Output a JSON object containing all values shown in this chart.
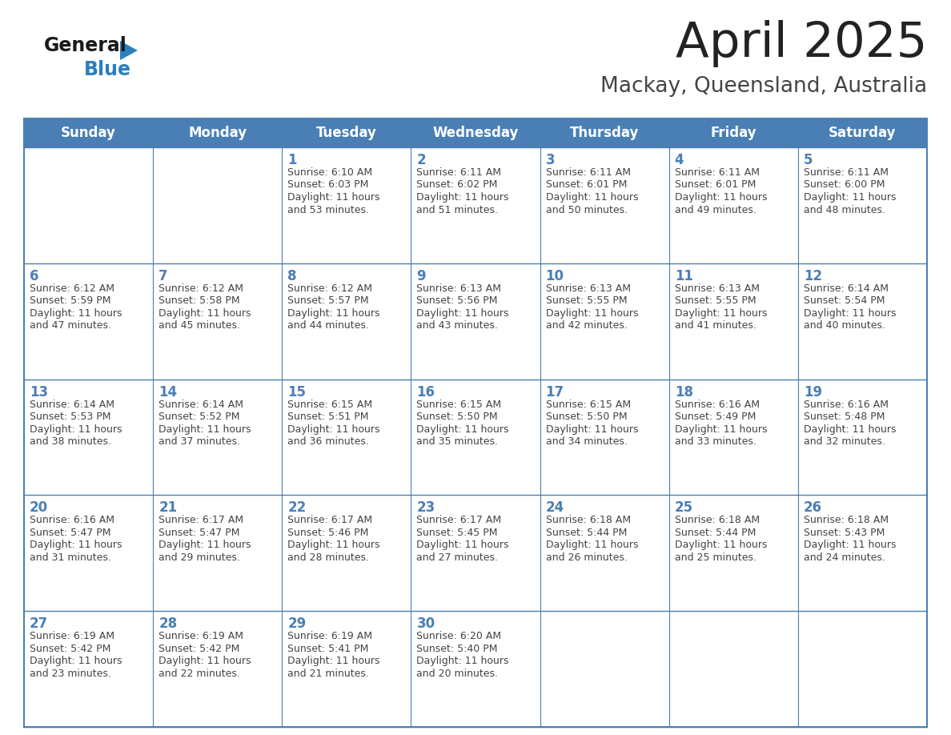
{
  "title": "April 2025",
  "subtitle": "Mackay, Queensland, Australia",
  "days_of_week": [
    "Sunday",
    "Monday",
    "Tuesday",
    "Wednesday",
    "Thursday",
    "Friday",
    "Saturday"
  ],
  "header_bg_color": "#4a7fb5",
  "header_text_color": "#ffffff",
  "cell_bg_color": "#ffffff",
  "cell_bg_alt": "#f2f6fb",
  "border_color": "#4a7fb5",
  "row_line_color": "#4a7fb5",
  "day_number_color": "#4a7fb5",
  "text_color": "#444444",
  "title_color": "#222222",
  "subtitle_color": "#444444",
  "logo_general_color": "#1a1a1a",
  "logo_blue_color": "#2a7fc0",
  "logo_triangle_color": "#2a7fc0",
  "weeks": [
    [
      {
        "date": "",
        "sunrise": "",
        "sunset": "",
        "daylight": ""
      },
      {
        "date": "",
        "sunrise": "",
        "sunset": "",
        "daylight": ""
      },
      {
        "date": "1",
        "sunrise": "6:10 AM",
        "sunset": "6:03 PM",
        "daylight": "11 hours and 53 minutes."
      },
      {
        "date": "2",
        "sunrise": "6:11 AM",
        "sunset": "6:02 PM",
        "daylight": "11 hours and 51 minutes."
      },
      {
        "date": "3",
        "sunrise": "6:11 AM",
        "sunset": "6:01 PM",
        "daylight": "11 hours and 50 minutes."
      },
      {
        "date": "4",
        "sunrise": "6:11 AM",
        "sunset": "6:01 PM",
        "daylight": "11 hours and 49 minutes."
      },
      {
        "date": "5",
        "sunrise": "6:11 AM",
        "sunset": "6:00 PM",
        "daylight": "11 hours and 48 minutes."
      }
    ],
    [
      {
        "date": "6",
        "sunrise": "6:12 AM",
        "sunset": "5:59 PM",
        "daylight": "11 hours and 47 minutes."
      },
      {
        "date": "7",
        "sunrise": "6:12 AM",
        "sunset": "5:58 PM",
        "daylight": "11 hours and 45 minutes."
      },
      {
        "date": "8",
        "sunrise": "6:12 AM",
        "sunset": "5:57 PM",
        "daylight": "11 hours and 44 minutes."
      },
      {
        "date": "9",
        "sunrise": "6:13 AM",
        "sunset": "5:56 PM",
        "daylight": "11 hours and 43 minutes."
      },
      {
        "date": "10",
        "sunrise": "6:13 AM",
        "sunset": "5:55 PM",
        "daylight": "11 hours and 42 minutes."
      },
      {
        "date": "11",
        "sunrise": "6:13 AM",
        "sunset": "5:55 PM",
        "daylight": "11 hours and 41 minutes."
      },
      {
        "date": "12",
        "sunrise": "6:14 AM",
        "sunset": "5:54 PM",
        "daylight": "11 hours and 40 minutes."
      }
    ],
    [
      {
        "date": "13",
        "sunrise": "6:14 AM",
        "sunset": "5:53 PM",
        "daylight": "11 hours and 38 minutes."
      },
      {
        "date": "14",
        "sunrise": "6:14 AM",
        "sunset": "5:52 PM",
        "daylight": "11 hours and 37 minutes."
      },
      {
        "date": "15",
        "sunrise": "6:15 AM",
        "sunset": "5:51 PM",
        "daylight": "11 hours and 36 minutes."
      },
      {
        "date": "16",
        "sunrise": "6:15 AM",
        "sunset": "5:50 PM",
        "daylight": "11 hours and 35 minutes."
      },
      {
        "date": "17",
        "sunrise": "6:15 AM",
        "sunset": "5:50 PM",
        "daylight": "11 hours and 34 minutes."
      },
      {
        "date": "18",
        "sunrise": "6:16 AM",
        "sunset": "5:49 PM",
        "daylight": "11 hours and 33 minutes."
      },
      {
        "date": "19",
        "sunrise": "6:16 AM",
        "sunset": "5:48 PM",
        "daylight": "11 hours and 32 minutes."
      }
    ],
    [
      {
        "date": "20",
        "sunrise": "6:16 AM",
        "sunset": "5:47 PM",
        "daylight": "11 hours and 31 minutes."
      },
      {
        "date": "21",
        "sunrise": "6:17 AM",
        "sunset": "5:47 PM",
        "daylight": "11 hours and 29 minutes."
      },
      {
        "date": "22",
        "sunrise": "6:17 AM",
        "sunset": "5:46 PM",
        "daylight": "11 hours and 28 minutes."
      },
      {
        "date": "23",
        "sunrise": "6:17 AM",
        "sunset": "5:45 PM",
        "daylight": "11 hours and 27 minutes."
      },
      {
        "date": "24",
        "sunrise": "6:18 AM",
        "sunset": "5:44 PM",
        "daylight": "11 hours and 26 minutes."
      },
      {
        "date": "25",
        "sunrise": "6:18 AM",
        "sunset": "5:44 PM",
        "daylight": "11 hours and 25 minutes."
      },
      {
        "date": "26",
        "sunrise": "6:18 AM",
        "sunset": "5:43 PM",
        "daylight": "11 hours and 24 minutes."
      }
    ],
    [
      {
        "date": "27",
        "sunrise": "6:19 AM",
        "sunset": "5:42 PM",
        "daylight": "11 hours and 23 minutes."
      },
      {
        "date": "28",
        "sunrise": "6:19 AM",
        "sunset": "5:42 PM",
        "daylight": "11 hours and 22 minutes."
      },
      {
        "date": "29",
        "sunrise": "6:19 AM",
        "sunset": "5:41 PM",
        "daylight": "11 hours and 21 minutes."
      },
      {
        "date": "30",
        "sunrise": "6:20 AM",
        "sunset": "5:40 PM",
        "daylight": "11 hours and 20 minutes."
      },
      {
        "date": "",
        "sunrise": "",
        "sunset": "",
        "daylight": ""
      },
      {
        "date": "",
        "sunrise": "",
        "sunset": "",
        "daylight": ""
      },
      {
        "date": "",
        "sunrise": "",
        "sunset": "",
        "daylight": ""
      }
    ]
  ]
}
